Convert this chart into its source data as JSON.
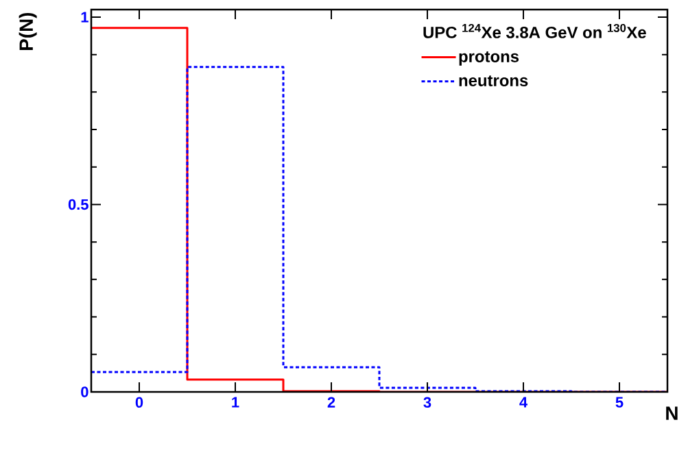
{
  "chart_data": {
    "type": "histogram",
    "xlabel": "N",
    "ylabel": "P(N)",
    "legend_title": "UPC $^{124}$Xe 3.8A GeV on $^{130}$Xe",
    "bins": [
      -0.5,
      0.5,
      1.5,
      2.5,
      3.5,
      4.5,
      5.5
    ],
    "xlim": [
      -0.5,
      5.5
    ],
    "ylim": [
      0,
      1.02
    ],
    "xticks": [
      0,
      1,
      2,
      3,
      4,
      5
    ],
    "yticks": [
      0,
      0.5,
      1
    ],
    "legend": "top right",
    "series": [
      {
        "name": "protons",
        "color": "#ff0000",
        "line_style": "solid",
        "values": [
          0.971,
          0.033,
          0.002,
          0,
          0,
          0
        ]
      },
      {
        "name": "neutrons",
        "color": "#0000ff",
        "line_style": "dashed",
        "values": [
          0.053,
          0.867,
          0.066,
          0.011,
          0.002,
          0
        ]
      }
    ]
  }
}
